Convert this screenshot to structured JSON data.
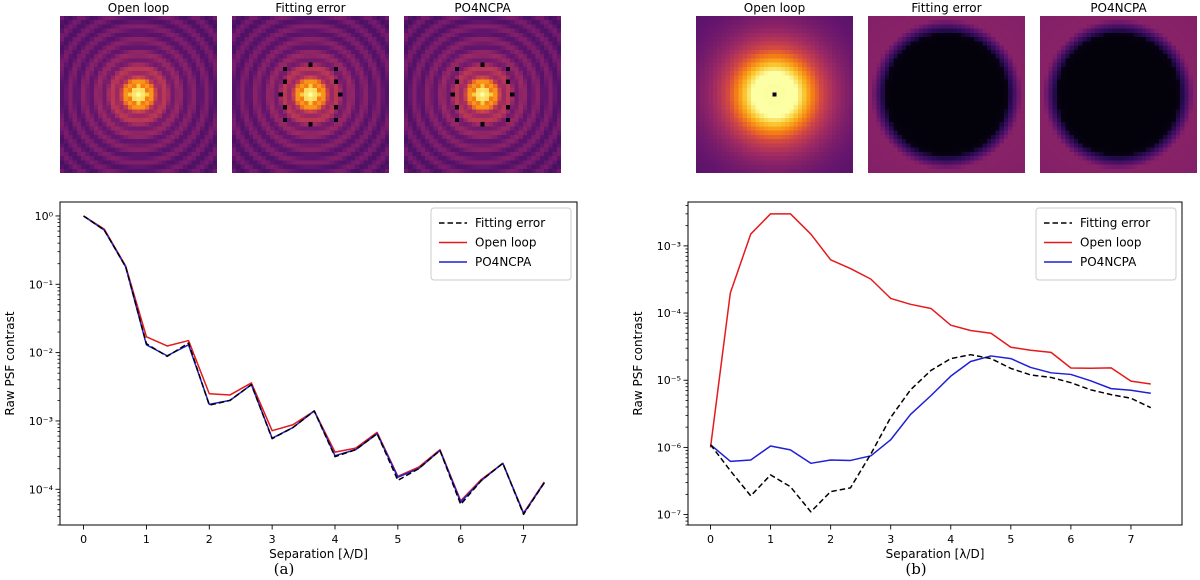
{
  "colors": {
    "fitting_error": "#000000",
    "open_loop": "#e41a1c",
    "po4ncpa": "#1f1fd6",
    "colormap": "inferno"
  },
  "panels": [
    {
      "caption": "(a)",
      "images": [
        {
          "title": "Open loop",
          "kind": "psf-rings"
        },
        {
          "title": "Fitting error",
          "kind": "psf-rings-dots"
        },
        {
          "title": "PO4NCPA",
          "kind": "psf-rings-dots"
        }
      ]
    },
    {
      "caption": "(b)",
      "images": [
        {
          "title": "Open loop",
          "kind": "halo-center"
        },
        {
          "title": "Fitting error",
          "kind": "dark-hole"
        },
        {
          "title": "PO4NCPA",
          "kind": "dark-hole"
        }
      ]
    }
  ],
  "chart_data": [
    {
      "type": "line",
      "xlabel": "Separation [λ/D]",
      "ylabel": "Raw PSF contrast",
      "yscale": "log",
      "xlim": [
        -0.375,
        7.85
      ],
      "ylim": [
        3e-05,
        1.6
      ],
      "xticks": [
        0,
        1,
        2,
        3,
        4,
        5,
        6,
        7
      ],
      "yticks": [
        {
          "value": 1,
          "label": "10⁰"
        },
        {
          "value": 0.1,
          "label": "10⁻¹"
        },
        {
          "value": 0.01,
          "label": "10⁻²"
        },
        {
          "value": 0.001,
          "label": "10⁻³"
        },
        {
          "value": 0.0001,
          "label": "10⁻⁴"
        }
      ],
      "legend_position": "top-right",
      "x": [
        0,
        0.33,
        0.67,
        1.0,
        1.33,
        1.67,
        2.0,
        2.33,
        2.67,
        3.0,
        3.33,
        3.67,
        4.0,
        4.33,
        4.67,
        5.0,
        5.33,
        5.67,
        6.0,
        6.33,
        6.67,
        7.0,
        7.33
      ],
      "series": [
        {
          "name": "Fitting error",
          "style": "dashed",
          "color": "#000000",
          "values": [
            1.0,
            0.62,
            0.18,
            0.0135,
            0.0088,
            0.0138,
            0.0017,
            0.002,
            0.0034,
            0.00055,
            0.0008,
            0.0014,
            0.0003,
            0.00038,
            0.00065,
            0.000135,
            0.0002,
            0.00037,
            6e-05,
            0.000135,
            0.00024,
            4.3e-05,
            0.000125
          ]
        },
        {
          "name": "Open loop",
          "style": "solid",
          "color": "#e41a1c",
          "values": [
            1.0,
            0.64,
            0.185,
            0.017,
            0.0125,
            0.015,
            0.0025,
            0.0024,
            0.0036,
            0.00072,
            0.00088,
            0.0014,
            0.00035,
            0.0004,
            0.00068,
            0.000155,
            0.00021,
            0.00038,
            6.8e-05,
            0.00014,
            0.00024,
            4.5e-05,
            0.000128
          ]
        },
        {
          "name": "PO4NCPA",
          "style": "solid",
          "color": "#1f1fd6",
          "values": [
            1.0,
            0.62,
            0.18,
            0.013,
            0.009,
            0.013,
            0.00175,
            0.002,
            0.0034,
            0.00056,
            0.0008,
            0.0014,
            0.00031,
            0.00038,
            0.00065,
            0.00015,
            0.0002,
            0.00037,
            6.5e-05,
            0.000135,
            0.00024,
            4.4e-05,
            0.000125
          ]
        }
      ]
    },
    {
      "type": "line",
      "xlabel": "Separation [λ/D]",
      "ylabel": "Raw PSF contrast",
      "yscale": "log",
      "xlim": [
        -0.375,
        7.85
      ],
      "ylim": [
        7e-08,
        0.0045
      ],
      "xticks": [
        0,
        1,
        2,
        3,
        4,
        5,
        6,
        7
      ],
      "yticks": [
        {
          "value": 0.001,
          "label": "10⁻³"
        },
        {
          "value": 0.0001,
          "label": "10⁻⁴"
        },
        {
          "value": 1e-05,
          "label": "10⁻⁵"
        },
        {
          "value": 1e-06,
          "label": "10⁻⁶"
        },
        {
          "value": 1e-07,
          "label": "10⁻⁷"
        }
      ],
      "legend_position": "top-right",
      "x": [
        0,
        0.33,
        0.67,
        1.0,
        1.33,
        1.67,
        2.0,
        2.33,
        2.67,
        3.0,
        3.33,
        3.67,
        4.0,
        4.33,
        4.67,
        5.0,
        5.33,
        5.67,
        6.0,
        6.33,
        6.67,
        7.0,
        7.33
      ],
      "series": [
        {
          "name": "Fitting error",
          "style": "dashed",
          "color": "#000000",
          "values": [
            1.1e-06,
            4.5e-07,
            1.9e-07,
            3.9e-07,
            2.6e-07,
            1.1e-07,
            2.2e-07,
            2.5e-07,
            8e-07,
            2.8e-06,
            7.2e-06,
            1.4e-05,
            2.1e-05,
            2.4e-05,
            2.1e-05,
            1.5e-05,
            1.2e-05,
            1.1e-05,
            9.2e-06,
            7.2e-06,
            6.1e-06,
            5.4e-06,
            3.9e-06
          ]
        },
        {
          "name": "Open loop",
          "style": "solid",
          "color": "#e41a1c",
          "values": [
            1e-06,
            0.0002,
            0.0015,
            0.003,
            0.003,
            0.0015,
            0.00062,
            0.00046,
            0.00032,
            0.000165,
            0.000135,
            0.000117,
            6.6e-05,
            5.5e-05,
            5e-05,
            3.1e-05,
            2.8e-05,
            2.6e-05,
            1.52e-05,
            1.51e-05,
            1.53e-05,
            9.7e-06,
            8.8e-06
          ]
        },
        {
          "name": "PO4NCPA",
          "style": "solid",
          "color": "#1f1fd6",
          "values": [
            1.1e-06,
            6.2e-07,
            6.5e-07,
            1.05e-06,
            9.2e-07,
            5.8e-07,
            6.5e-07,
            6.4e-07,
            7.5e-07,
            1.3e-06,
            3.1e-06,
            5.9e-06,
            1.15e-05,
            1.9e-05,
            2.3e-05,
            2.1e-05,
            1.55e-05,
            1.29e-05,
            1.22e-05,
            9.8e-06,
            7.5e-06,
            7.1e-06,
            6.4e-06
          ]
        }
      ]
    }
  ]
}
